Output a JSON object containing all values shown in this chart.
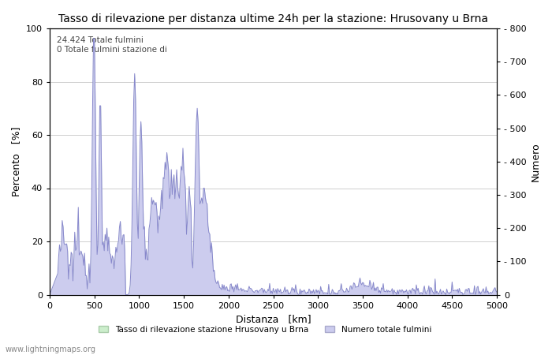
{
  "title": "Tasso di rilevazione per distanza ultime 24h per la stazione: Hrusovany u Brna",
  "xlabel": "Distanza   [km]",
  "ylabel_left": "Percento   [%]",
  "ylabel_right": "Numero",
  "annotation_line1": "24.424 Totale fulmini",
  "annotation_line2": "0 Totale fulmini stazione di",
  "xlim": [
    0,
    5000
  ],
  "ylim_left": [
    0,
    100
  ],
  "ylim_right": [
    0,
    800
  ],
  "xticks": [
    0,
    500,
    1000,
    1500,
    2000,
    2500,
    3000,
    3500,
    4000,
    4500,
    5000
  ],
  "yticks_left": [
    0,
    20,
    40,
    60,
    80,
    100
  ],
  "yticks_right": [
    0,
    100,
    200,
    300,
    400,
    500,
    600,
    700,
    800
  ],
  "legend_label_green": "Tasso di rilevazione stazione Hrusovany u Brna",
  "legend_label_blue": "Numero totale fulmini",
  "watermark": "www.lightningmaps.org",
  "bg_color": "#ffffff",
  "grid_color": "#c8c8c8",
  "line_color": "#8888cc",
  "fill_green_color": "#cceecc",
  "fill_blue_color": "#ccccee",
  "title_fontsize": 10,
  "axis_fontsize": 9,
  "tick_fontsize": 8
}
